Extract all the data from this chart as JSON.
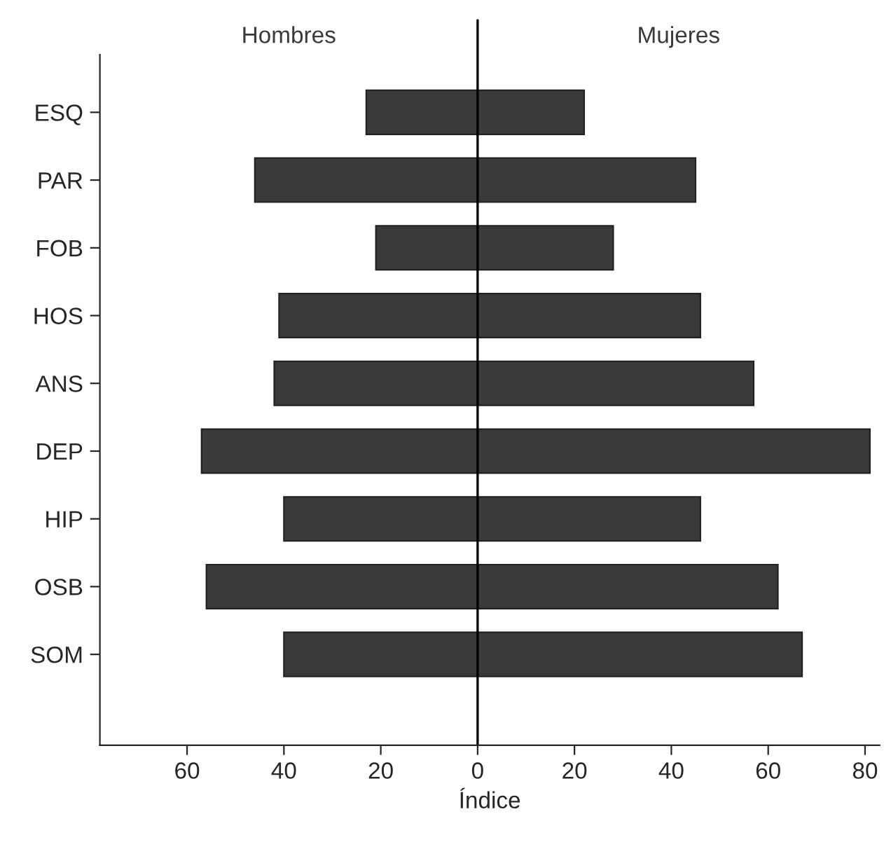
{
  "chart_data": {
    "type": "bar",
    "orientation": "horizontal",
    "xlabel": "Índice",
    "categories": [
      "ESQ",
      "PAR",
      "FOB",
      "HOS",
      "ANS",
      "DEP",
      "HIP",
      "OSB",
      "SOM"
    ],
    "series": [
      {
        "name": "Hombres",
        "color": "#3a3a3a",
        "values": [
          -23,
          -46,
          -21,
          -41,
          -42,
          -57,
          -40,
          -56,
          -40
        ]
      },
      {
        "name": "Mujeres",
        "color": "#3a3a3a",
        "values": [
          22,
          45,
          28,
          46,
          57,
          81,
          46,
          62,
          67
        ]
      }
    ],
    "xlim": [
      -78,
      83
    ],
    "xticks": [
      {
        "value": -60,
        "label": "60"
      },
      {
        "value": -40,
        "label": "40"
      },
      {
        "value": -20,
        "label": "20"
      },
      0,
      20,
      40,
      60,
      80
    ],
    "ref_lines": [
      {
        "axis": "x",
        "value": 0,
        "color": "#000000"
      }
    ],
    "stacked": true,
    "grid": false,
    "legend": false
  }
}
